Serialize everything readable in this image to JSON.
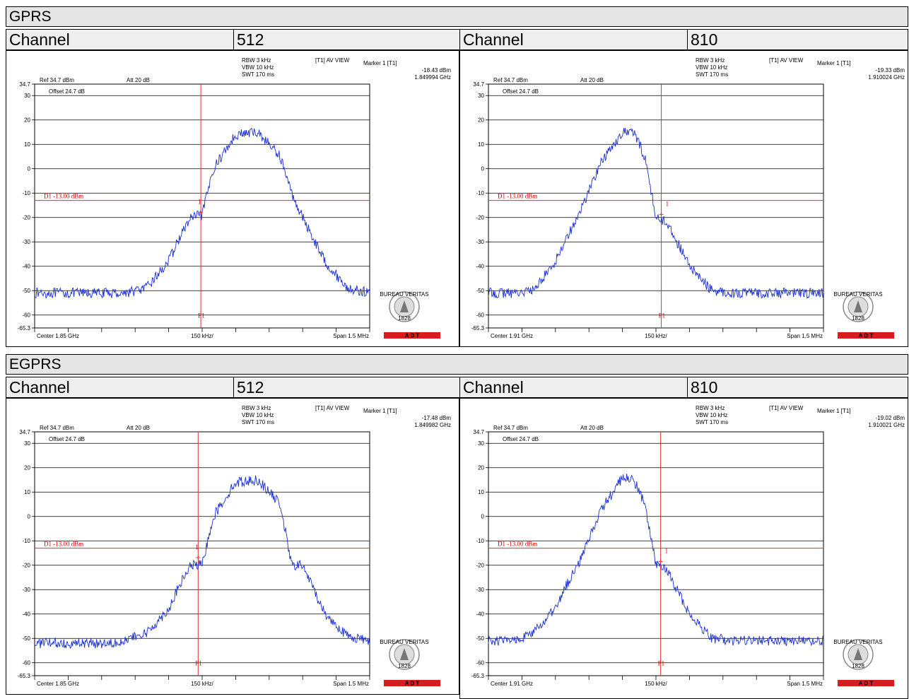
{
  "sections": [
    {
      "title": "GPRS",
      "channel_label": "Channel",
      "panels": [
        {
          "channel": "512",
          "ref": "Ref 34.7 dBm",
          "att": "Att  20 dB",
          "rbw": "RBW 3 kHz",
          "vbw": "VBW 10 kHz",
          "swt": "SWT 170 ms",
          "trace": "[T1] AV VIEW",
          "marker_title": "Marker 1 [T1]",
          "marker_level": "-18.43 dBm",
          "marker_freq": "1.849994 GHz",
          "offset": "Offset 24.7 dB",
          "line_label": "D1 -13.00 dBm",
          "center": "Center 1.85 GHz",
          "div": "150 kHz/",
          "span": "Span 1.5 MHz"
        },
        {
          "channel": "810",
          "ref": "Ref 34.7 dBm",
          "att": "Att  20 dB",
          "rbw": "RBW 3 kHz",
          "vbw": "VBW 10 kHz",
          "swt": "SWT 170 ms",
          "trace": "[T1] AV VIEW",
          "marker_title": "Marker 1 [T1]",
          "marker_level": "-19.33 dBm",
          "marker_freq": "1.910024 GHz",
          "offset": "Offset 24.7 dB",
          "line_label": "D1 -13.00 dBm",
          "center": "Center 1.91 GHz",
          "div": "150 kHz/",
          "span": "Span 1.5 MHz"
        }
      ]
    },
    {
      "title": "EGPRS",
      "channel_label": "Channel",
      "panels": [
        {
          "channel": "512",
          "ref": "Ref 34.7 dBm",
          "att": "Att  20 dB",
          "rbw": "RBW 3 kHz",
          "vbw": "VBW 10 kHz",
          "swt": "SWT 170 ms",
          "trace": "[T1] AV VIEW",
          "marker_title": "Marker 1 [T1]",
          "marker_level": "-17.48 dBm",
          "marker_freq": "1.849982 GHz",
          "offset": "Offset 24.7 dB",
          "line_label": "D1 -13.00 dBm",
          "center": "Center 1.85 GHz",
          "div": "150 kHz/",
          "span": "Span 1.5 MHz"
        },
        {
          "channel": "810",
          "ref": "Ref 34.7 dBm",
          "att": "Att  20 dB",
          "rbw": "RBW 3 kHz",
          "vbw": "VBW 10 kHz",
          "swt": "SWT 170 ms",
          "trace": "[T1] AV VIEW",
          "marker_title": "Marker 1 [T1]",
          "marker_level": "-19.02 dBm",
          "marker_freq": "1.910021 GHz",
          "offset": "Offset 24.7 dB",
          "line_label": "D1 -13.00 dBm",
          "center": "Center 1.91 GHz",
          "div": "150 kHz/",
          "span": "Span 1.5 MHz"
        }
      ]
    }
  ],
  "logo": {
    "text_top": "BUREAU VERITAS",
    "year": "1828",
    "band": "A  D  T"
  },
  "colors": {
    "trace": "#1a2fcf",
    "limit": "#e03030",
    "grid": "#000000",
    "band": "#d61c1c",
    "header_bg": "#e6e6e6"
  },
  "chart_data": [
    {
      "type": "line",
      "title": "GPRS Channel 512",
      "xlabel": "",
      "ylabel": "",
      "ylim": [
        -65.3,
        34.7
      ],
      "x_ticks": [
        "Center 1.85 GHz",
        "150 kHz/",
        "Span 1.5 MHz"
      ],
      "y_ticks": [
        "34.7",
        "30",
        "20",
        "10",
        "0",
        "-10",
        "-20",
        "-30",
        "-40",
        "-50",
        "-60",
        "-65.3"
      ],
      "limit_line": -13.0,
      "marker": {
        "x_offset_khz": -6,
        "y": -18.43
      },
      "series": [
        {
          "x": [
            -750,
            -650,
            -550,
            -450,
            -350,
            -250,
            -150,
            -100,
            -50,
            0,
            50,
            150,
            250,
            350,
            400,
            450,
            550,
            650,
            750
          ],
          "values": [
            -51,
            -51,
            -51,
            -51,
            -51,
            -49,
            -38,
            -28,
            -20,
            -19,
            0,
            14,
            15,
            5,
            -10,
            -20,
            -38,
            -49,
            -51
          ]
        }
      ]
    },
    {
      "type": "line",
      "title": "GPRS Channel 810",
      "xlabel": "",
      "ylabel": "",
      "ylim": [
        -65.3,
        34.7
      ],
      "x_ticks": [
        "Center 1.91 GHz",
        "150 kHz/",
        "Span 1.5 MHz"
      ],
      "y_ticks": [
        "34.7",
        "30",
        "20",
        "10",
        "0",
        "-10",
        "-20",
        "-30",
        "-40",
        "-50",
        "-60",
        "-65.3"
      ],
      "limit_line": -13.0,
      "marker": {
        "x_offset_khz": 24,
        "y": -19.33
      },
      "series": [
        {
          "x": [
            -750,
            -650,
            -550,
            -450,
            -400,
            -350,
            -250,
            -150,
            -100,
            -50,
            0,
            50,
            150,
            250,
            350,
            450,
            550,
            650,
            750
          ],
          "values": [
            -51,
            -51,
            -50,
            -38,
            -28,
            -20,
            2,
            15,
            15,
            5,
            -20,
            -22,
            -40,
            -50,
            -51,
            -51,
            -51,
            -51,
            -51
          ]
        }
      ]
    },
    {
      "type": "line",
      "title": "EGPRS Channel 512",
      "xlabel": "",
      "ylabel": "",
      "ylim": [
        -65.3,
        34.7
      ],
      "x_ticks": [
        "Center 1.85 GHz",
        "150 kHz/",
        "Span 1.5 MHz"
      ],
      "y_ticks": [
        "34.7",
        "30",
        "20",
        "10",
        "0",
        "-10",
        "-20",
        "-30",
        "-40",
        "-50",
        "-60",
        "-65.3"
      ],
      "limit_line": -13.0,
      "marker": {
        "x_offset_khz": -18,
        "y": -17.48
      },
      "series": [
        {
          "x": [
            -750,
            -650,
            -550,
            -450,
            -350,
            -250,
            -150,
            -100,
            -50,
            0,
            50,
            150,
            250,
            350,
            400,
            450,
            550,
            650,
            750
          ],
          "values": [
            -52,
            -52,
            -52,
            -52,
            -51,
            -48,
            -38,
            -28,
            -20,
            -20,
            0,
            14,
            15,
            5,
            -20,
            -20,
            -40,
            -49,
            -51
          ]
        }
      ]
    },
    {
      "type": "line",
      "title": "EGPRS Channel 810",
      "xlabel": "",
      "ylabel": "",
      "ylim": [
        -65.3,
        34.7
      ],
      "x_ticks": [
        "Center 1.91 GHz",
        "150 kHz/",
        "Span 1.5 MHz"
      ],
      "y_ticks": [
        "34.7",
        "30",
        "20",
        "10",
        "0",
        "-10",
        "-20",
        "-30",
        "-40",
        "-50",
        "-60",
        "-65.3"
      ],
      "limit_line": -13.0,
      "marker": {
        "x_offset_khz": 21,
        "y": -19.02
      },
      "series": [
        {
          "x": [
            -750,
            -650,
            -550,
            -450,
            -400,
            -350,
            -250,
            -150,
            -100,
            -50,
            0,
            50,
            150,
            250,
            350,
            450,
            550,
            650,
            750
          ],
          "values": [
            -51,
            -51,
            -48,
            -38,
            -28,
            -20,
            2,
            16,
            15,
            5,
            -20,
            -22,
            -40,
            -50,
            -51,
            -51,
            -51,
            -51,
            -51
          ]
        }
      ]
    }
  ]
}
